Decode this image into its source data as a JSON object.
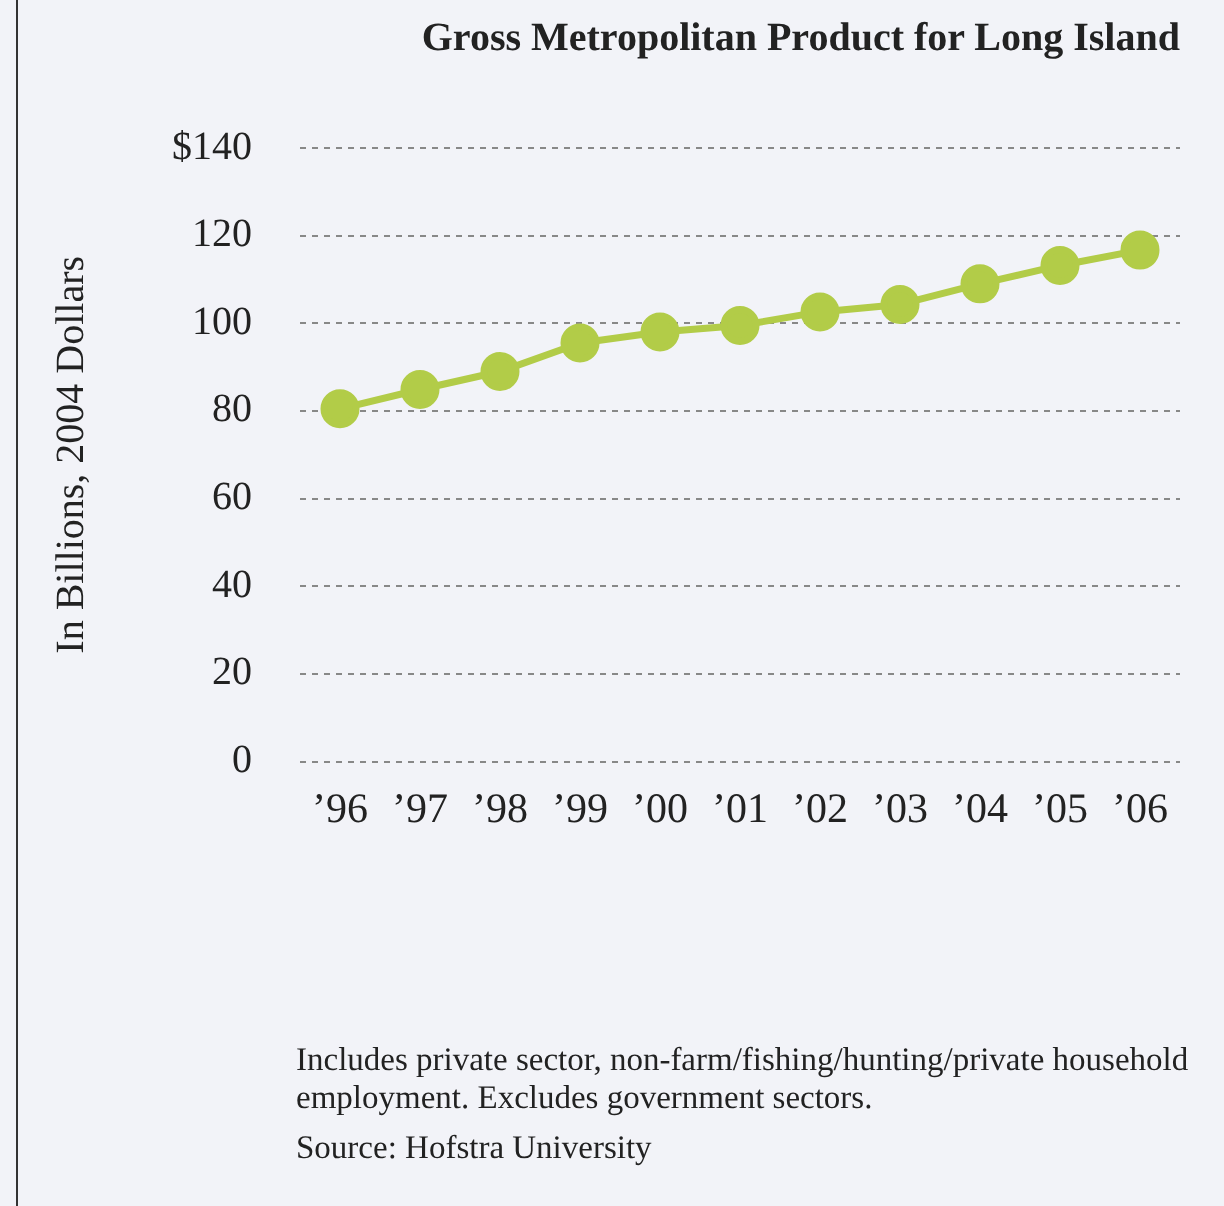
{
  "chart_data": {
    "type": "line",
    "title": "Gross Metropolitan Product for Long Island",
    "ylabel": "In Billions, 2004 Dollars",
    "categories": [
      "’96",
      "’97",
      "’98",
      "’99",
      "’00",
      "’01",
      "’02",
      "’03",
      "’04",
      "’05",
      "’06"
    ],
    "series": [
      {
        "color": "#b2cc48",
        "values": [
          80.5,
          84.9,
          89,
          95.5,
          98,
          99.5,
          102.6,
          104.3,
          109,
          113.2,
          116.7
        ]
      }
    ],
    "ylim": [
      0,
      140
    ],
    "yticks": [
      0,
      20,
      40,
      60,
      80,
      100,
      120,
      {
        "value": 140,
        "label": "$140"
      }
    ],
    "grid": "y",
    "legend": false,
    "marker": "circle",
    "line_style": "solid",
    "annotations": [
      "Includes private sector, non-farm/fishing/hunting/private household employment. Excludes government sectors.",
      "Source: Hofstra University"
    ]
  }
}
